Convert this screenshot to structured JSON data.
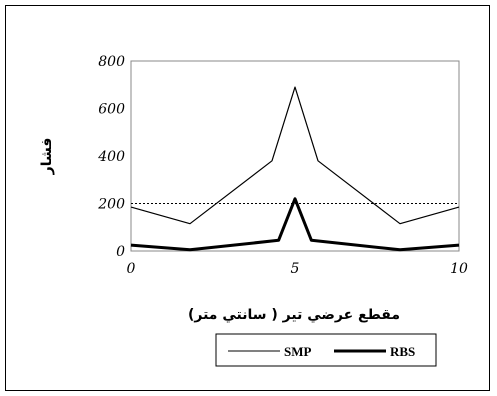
{
  "chart_data": {
    "type": "line",
    "xlabel": "مقطع عرضي تير ( سانتي متر)",
    "ylabel": "فشار",
    "xlim": [
      0,
      10
    ],
    "ylim": [
      0,
      800
    ],
    "x_ticks": [
      "0",
      "5",
      "10"
    ],
    "y_ticks": [
      "0",
      "200",
      "400",
      "600",
      "800"
    ],
    "reference_line": {
      "y": 200,
      "style": "dotted"
    },
    "legend": {
      "position": "bottom",
      "entries": [
        "SMP",
        "RBS"
      ]
    },
    "series": [
      {
        "name": "SMP",
        "line": "thin",
        "x": [
          0,
          1.8,
          4.3,
          5,
          5.7,
          8.2,
          10
        ],
        "y": [
          185,
          115,
          380,
          690,
          380,
          115,
          185
        ]
      },
      {
        "name": "RBS",
        "line": "thick",
        "x": [
          0,
          1.8,
          4.5,
          5,
          5.5,
          8.2,
          10
        ],
        "y": [
          25,
          5,
          45,
          220,
          45,
          5,
          25
        ]
      }
    ]
  }
}
